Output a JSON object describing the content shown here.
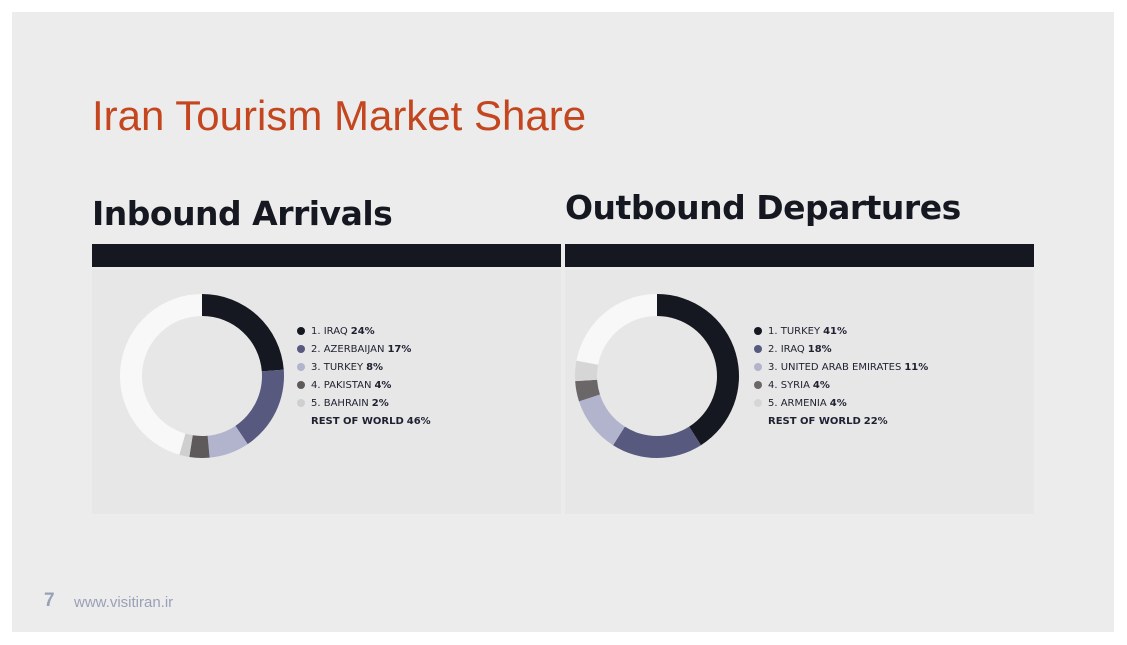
{
  "slide": {
    "title": "Iran Tourism Market Share",
    "title_color": "#c4461f",
    "page_number": "7",
    "footer_url": "www.visitiran.ir"
  },
  "chart_data": [
    {
      "type": "pie",
      "title": "Inbound Arrivals",
      "labels": [
        "1. IRAQ",
        "2. AZERBAIJAN",
        "3. TURKEY",
        "4. PAKISTAN",
        "5. BAHRAIN",
        "REST OF WORLD"
      ],
      "values": [
        24,
        17,
        8,
        4,
        2,
        46
      ],
      "value_labels": [
        "24%",
        "17%",
        "8%",
        "4%",
        "2%",
        "46%"
      ],
      "colors": [
        "#151820",
        "#57597f",
        "#b2b3cc",
        "#5e5a5c",
        "#cfcfcf",
        "#f8f8f8"
      ],
      "style": "donut",
      "legend_position": "right"
    },
    {
      "type": "pie",
      "title": "Outbound Departures",
      "labels": [
        "1. TURKEY",
        "2. IRAQ",
        "3. UNITED ARAB EMIRATES",
        "4. SYRIA",
        "5. ARMENIA",
        "REST OF WORLD"
      ],
      "values": [
        41,
        18,
        11,
        4,
        4,
        22
      ],
      "value_labels": [
        "41%",
        "18%",
        "11%",
        "4%",
        "4%",
        "22%"
      ],
      "colors": [
        "#151820",
        "#57597f",
        "#b2b3cc",
        "#6b6768",
        "#d6d6d6",
        "#f8f8f8"
      ],
      "style": "donut",
      "legend_position": "right"
    }
  ]
}
